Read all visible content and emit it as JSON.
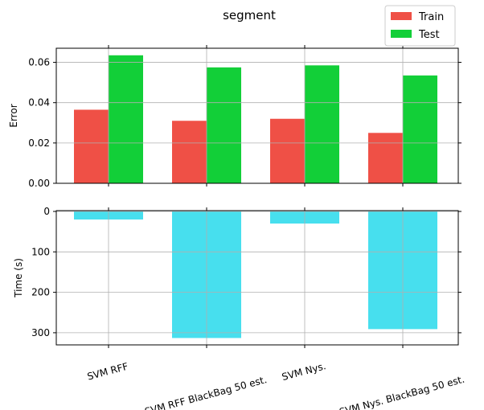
{
  "chart_data": {
    "type": "bar",
    "title": "segment",
    "categories": [
      "SVM RFF",
      "SVM RFF BlackBag 50 est.",
      "SVM Nys.",
      "SVM Nys. BlackBag 50 est."
    ],
    "panels": [
      {
        "ylabel": "Error",
        "ylim": [
          0,
          0.067
        ],
        "yticks": [
          0.0,
          0.02,
          0.04,
          0.06
        ],
        "ytick_labels": [
          "0.00",
          "0.02",
          "0.04",
          "0.06"
        ],
        "inverted": false,
        "grid": true,
        "series": [
          {
            "name": "Train",
            "color": "#ef5046",
            "values": [
              0.0365,
              0.031,
              0.032,
              0.025
            ]
          },
          {
            "name": "Test",
            "color": "#12cf38",
            "values": [
              0.0635,
              0.0575,
              0.0585,
              0.0535
            ]
          }
        ]
      },
      {
        "ylabel": "Time (s)",
        "ylim": [
          0,
          330
        ],
        "yticks": [
          0,
          100,
          200,
          300
        ],
        "ytick_labels": [
          "0",
          "100",
          "200",
          "300"
        ],
        "inverted": true,
        "grid": true,
        "series": [
          {
            "color": "#47dfee",
            "values": [
              20,
              313,
              30,
              291
            ]
          }
        ]
      }
    ],
    "legend": {
      "placement": "top-right",
      "entries": [
        "Train",
        "Test"
      ]
    }
  }
}
